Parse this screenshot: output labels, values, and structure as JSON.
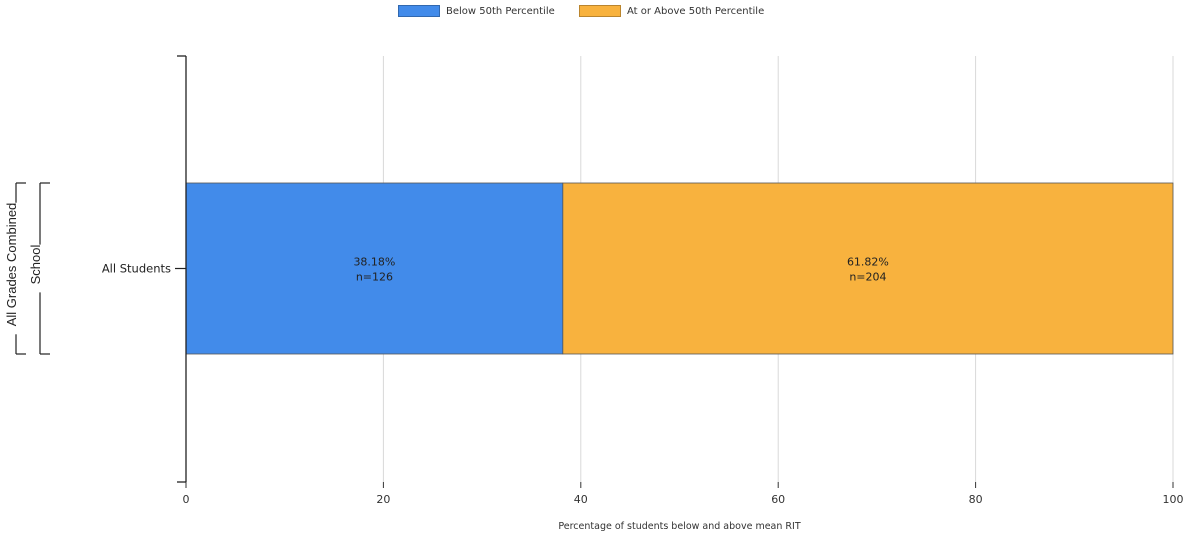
{
  "chart_data": {
    "type": "bar",
    "orientation": "horizontal",
    "stacked": true,
    "categories": [
      "All Students"
    ],
    "series": [
      {
        "name": "Below 50th Percentile",
        "values": [
          38.18
        ],
        "counts": [
          "n=126"
        ],
        "value_labels": [
          "38.18%"
        ],
        "color": "#428bea"
      },
      {
        "name": "At or Above 50th Percentile",
        "values": [
          61.82
        ],
        "counts": [
          "n=204"
        ],
        "value_labels": [
          "61.82%"
        ],
        "color": "#f8b23e"
      }
    ],
    "xlabel": "Percentage of students below and above mean RIT",
    "xlim": [
      0,
      100
    ],
    "xticks": [
      "0",
      "20",
      "40",
      "60",
      "80",
      "100"
    ],
    "grid": "vertical",
    "legend_position": "top-center",
    "group_labels": [
      "School",
      "All Grades Combined"
    ]
  }
}
